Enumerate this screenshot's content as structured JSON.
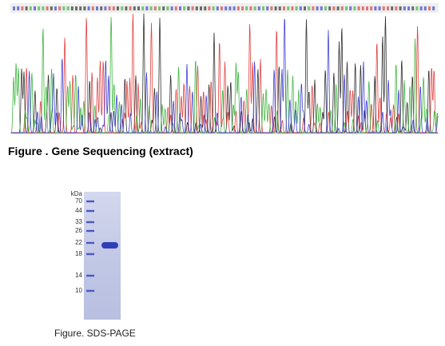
{
  "sequencing": {
    "caption": "Figure . Gene Sequencing (extract)"
  },
  "sds_page": {
    "unit": "kDa",
    "markers": [
      "70",
      "44",
      "33",
      "26",
      "22",
      "18",
      "14",
      "10"
    ],
    "caption": "Figure. SDS-PAGE"
  }
}
